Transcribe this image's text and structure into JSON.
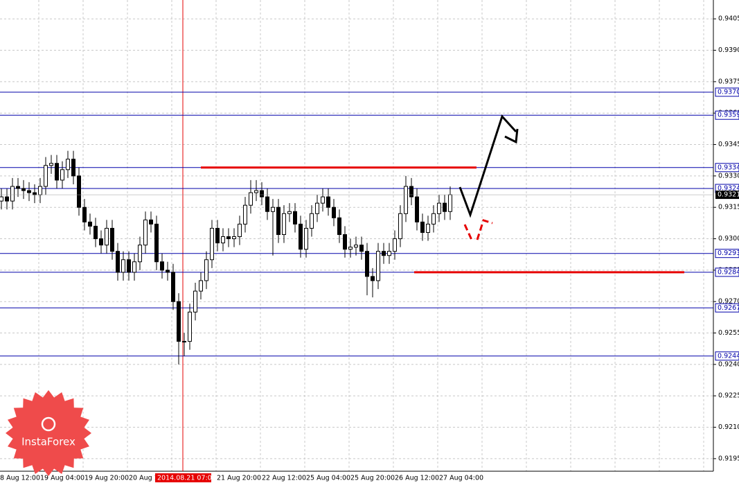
{
  "chart_data": {
    "type": "candlestick",
    "ylim": [
      0.9189,
      0.9414
    ],
    "yticks": [
      0.9195,
      {
        "value": 0.921,
        "label": "0.9210"
      },
      0.9225,
      {
        "value": 0.924,
        "label": "0.9240"
      },
      0.9255,
      {
        "value": 0.927,
        "label": "0.9270"
      },
      0.9285,
      {
        "value": 0.93,
        "label": "0.9300"
      },
      0.9315,
      {
        "value": 0.933,
        "label": "0.9330"
      },
      0.9345,
      {
        "value": 0.936,
        "label": "0.9360"
      },
      0.9375,
      {
        "value": 0.939,
        "label": "0.9390"
      },
      0.9405
    ],
    "grid": true,
    "x_labels": [
      "8 Aug 12:00",
      "19 Aug 04:00",
      "19 Aug 20:00",
      "20 Aug 1",
      "2014.08.21 07:00",
      "21 Aug 20:00",
      "22 Aug 12:00",
      "25 Aug 04:00",
      "25 Aug 20:00",
      "26 Aug 12:00",
      "27 Aug 04:00"
    ],
    "crosshair_label_index": 4,
    "levels": [
      {
        "value": 0.937,
        "label": "0.9370"
      },
      0.9359,
      0.9334,
      0.9324,
      0.9293,
      0.9284,
      0.9267,
      0.9244
    ],
    "level_color": "#0000aa",
    "current_price": 0.9321,
    "zones": [
      {
        "value": 0.9334,
        "color": "#e60000"
      },
      {
        "value": 0.9284,
        "color": "#e60000"
      }
    ],
    "open": [
      0.9318,
      0.932,
      0.9318,
      0.9325,
      0.9324,
      0.9323,
      0.9322,
      0.9321,
      0.9325,
      0.9335,
      0.9336,
      0.9328,
      0.9333,
      0.9338,
      0.933,
      0.9315,
      0.9308,
      0.9306,
      0.93,
      0.9297,
      0.9305,
      0.9294,
      0.9284,
      0.929,
      0.9284,
      0.9289,
      0.9297,
      0.9309,
      0.9307,
      0.9289,
      0.9285,
      0.9284,
      0.927,
      0.9251,
      0.9251,
      0.9265,
      0.9275,
      0.928,
      0.929,
      0.9305,
      0.9298,
      0.9301,
      0.93,
      0.9301,
      0.9307,
      0.9316,
      0.9322,
      0.9323,
      0.932,
      0.9313,
      0.9315,
      0.9302,
      0.9312,
      0.9313,
      0.9307,
      0.9295,
      0.9305,
      0.9312,
      0.9317,
      0.932,
      0.9315,
      0.931,
      0.9302,
      0.9295,
      0.9296,
      0.9297,
      0.9294,
      0.9282,
      0.928,
      0.9294,
      0.9292,
      0.9294,
      0.93,
      0.9312,
      0.9325,
      0.932,
      0.9308,
      0.9303,
      0.9307,
      0.9312,
      0.9317,
      0.9313
    ],
    "high": [
      0.9324,
      0.9324,
      0.9329,
      0.9329,
      0.9328,
      0.9327,
      0.9326,
      0.9329,
      0.9339,
      0.934,
      0.934,
      0.9337,
      0.9342,
      0.9342,
      0.9334,
      0.9319,
      0.9312,
      0.931,
      0.9304,
      0.9309,
      0.9309,
      0.9298,
      0.9294,
      0.9294,
      0.9293,
      0.9301,
      0.9313,
      0.9313,
      0.9311,
      0.9293,
      0.9289,
      0.9288,
      0.9274,
      0.9255,
      0.9269,
      0.9279,
      0.9284,
      0.9294,
      0.9309,
      0.9309,
      0.9305,
      0.9305,
      0.9305,
      0.9311,
      0.932,
      0.9328,
      0.9328,
      0.9327,
      0.9324,
      0.9319,
      0.9319,
      0.9316,
      0.9317,
      0.9317,
      0.9311,
      0.9309,
      0.9316,
      0.9321,
      0.9324,
      0.9324,
      0.9319,
      0.9314,
      0.9306,
      0.93,
      0.9301,
      0.9301,
      0.9298,
      0.9286,
      0.9298,
      0.9298,
      0.9298,
      0.9304,
      0.9316,
      0.933,
      0.9329,
      0.9324,
      0.9312,
      0.9311,
      0.9316,
      0.9321,
      0.9321,
      0.9325
    ],
    "low": [
      0.9314,
      0.9314,
      0.9314,
      0.932,
      0.9319,
      0.9318,
      0.9317,
      0.9317,
      0.9321,
      0.9331,
      0.9324,
      0.9324,
      0.9329,
      0.9326,
      0.9311,
      0.9304,
      0.9302,
      0.9296,
      0.9293,
      0.9293,
      0.929,
      0.928,
      0.928,
      0.928,
      0.928,
      0.9285,
      0.9293,
      0.9303,
      0.9285,
      0.9281,
      0.928,
      0.9266,
      0.924,
      0.9244,
      0.9247,
      0.9261,
      0.9271,
      0.9276,
      0.9286,
      0.9294,
      0.9294,
      0.9296,
      0.9296,
      0.9297,
      0.9303,
      0.9312,
      0.9318,
      0.9316,
      0.9309,
      0.9292,
      0.9298,
      0.9298,
      0.9308,
      0.9303,
      0.9291,
      0.9291,
      0.9301,
      0.9308,
      0.9313,
      0.9311,
      0.9306,
      0.9298,
      0.9291,
      0.9291,
      0.9292,
      0.929,
      0.9273,
      0.9272,
      0.9276,
      0.9288,
      0.9288,
      0.929,
      0.9296,
      0.9308,
      0.9316,
      0.9304,
      0.9299,
      0.9299,
      0.9303,
      0.9308,
      0.9309,
      0.9309
    ],
    "close": [
      0.932,
      0.9318,
      0.9325,
      0.9324,
      0.9323,
      0.9322,
      0.9321,
      0.9325,
      0.9335,
      0.9336,
      0.9328,
      0.9333,
      0.9338,
      0.933,
      0.9315,
      0.9308,
      0.9306,
      0.93,
      0.9297,
      0.9305,
      0.9294,
      0.9284,
      0.929,
      0.9284,
      0.9289,
      0.9297,
      0.9309,
      0.9307,
      0.9289,
      0.9285,
      0.9284,
      0.927,
      0.9251,
      0.9251,
      0.9265,
      0.9275,
      0.928,
      0.929,
      0.9305,
      0.9298,
      0.9301,
      0.93,
      0.9301,
      0.9307,
      0.9316,
      0.9322,
      0.9323,
      0.932,
      0.9313,
      0.9315,
      0.9302,
      0.9312,
      0.9313,
      0.9307,
      0.9295,
      0.9305,
      0.9312,
      0.9317,
      0.932,
      0.9315,
      0.931,
      0.9302,
      0.9295,
      0.9296,
      0.9297,
      0.9294,
      0.9282,
      0.928,
      0.9294,
      0.9292,
      0.9294,
      0.93,
      0.9312,
      0.9325,
      0.932,
      0.9308,
      0.9303,
      0.9307,
      0.9312,
      0.9317,
      0.9313,
      0.9321
    ]
  },
  "logo": "InstaForex"
}
